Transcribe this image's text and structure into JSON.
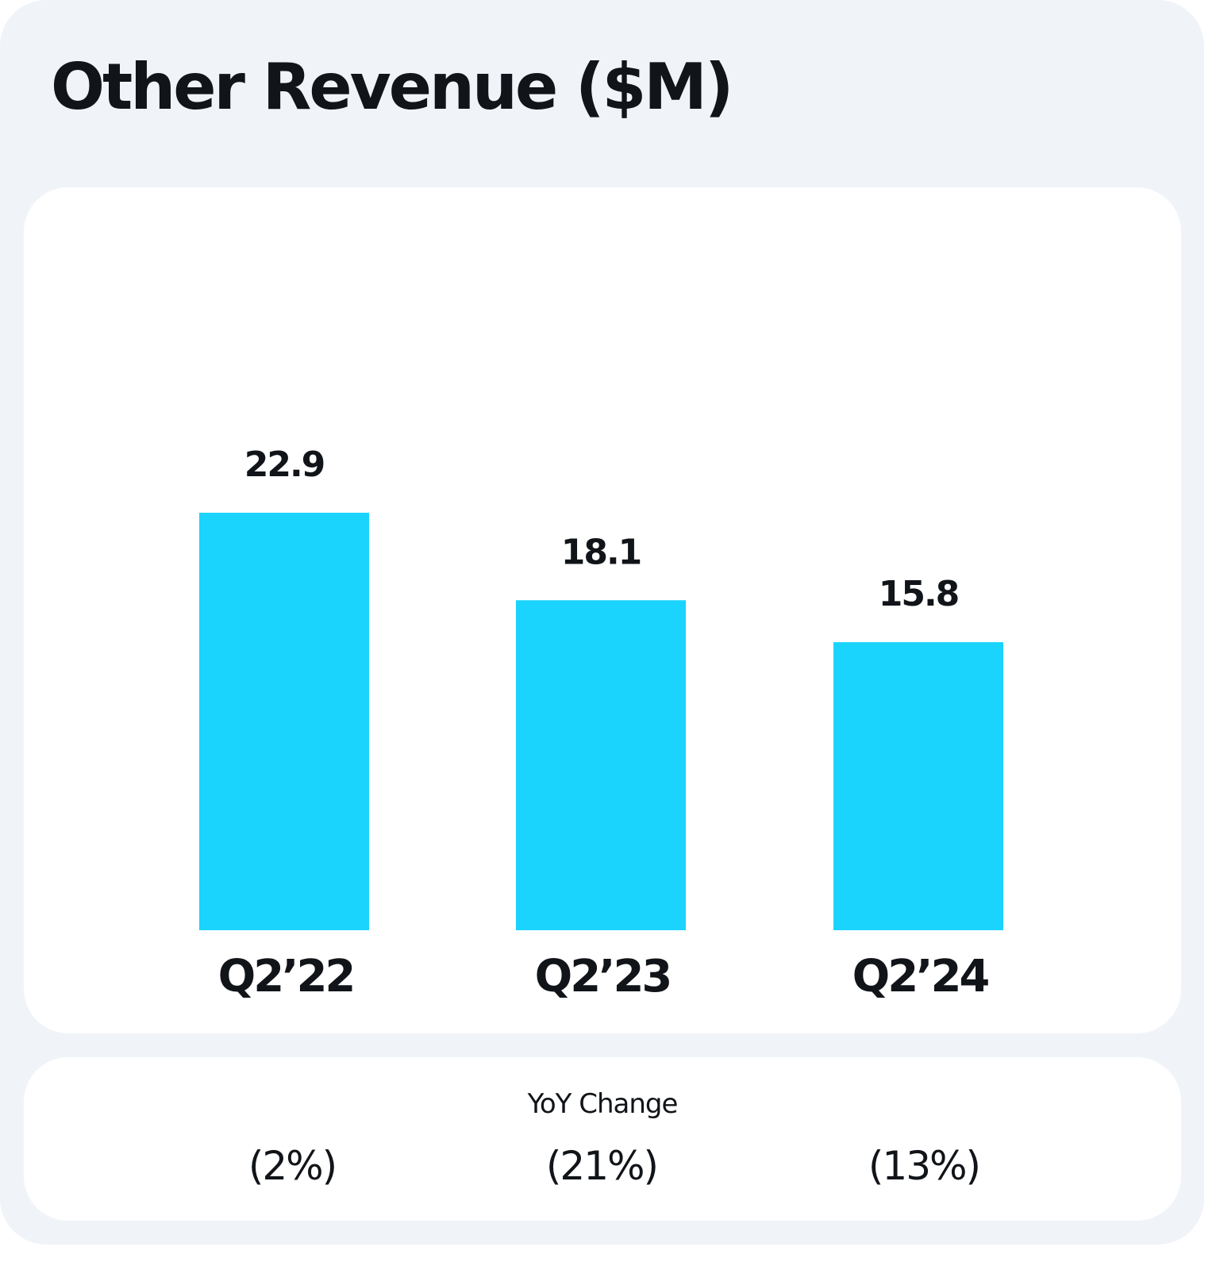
{
  "title": "Other Revenue ($M)",
  "colors": {
    "bar": "#1ad4fd",
    "background": "#f0f4f9",
    "card": "#ffffff",
    "text": "#111418"
  },
  "chart_data": {
    "type": "bar",
    "title": "Other Revenue ($M)",
    "categories": [
      "Q2’22",
      "Q2’23",
      "Q2’24"
    ],
    "values": [
      22.9,
      18.1,
      15.8
    ],
    "data_labels": [
      "22.9",
      "18.1",
      "15.8"
    ],
    "xlabel": "",
    "ylabel": "",
    "ylim": [
      0,
      22.9
    ],
    "grid": false,
    "legend": "none"
  },
  "yoy": {
    "title": "YoY Change",
    "values": [
      "(2%)",
      "(21%)",
      "(13%)"
    ]
  }
}
